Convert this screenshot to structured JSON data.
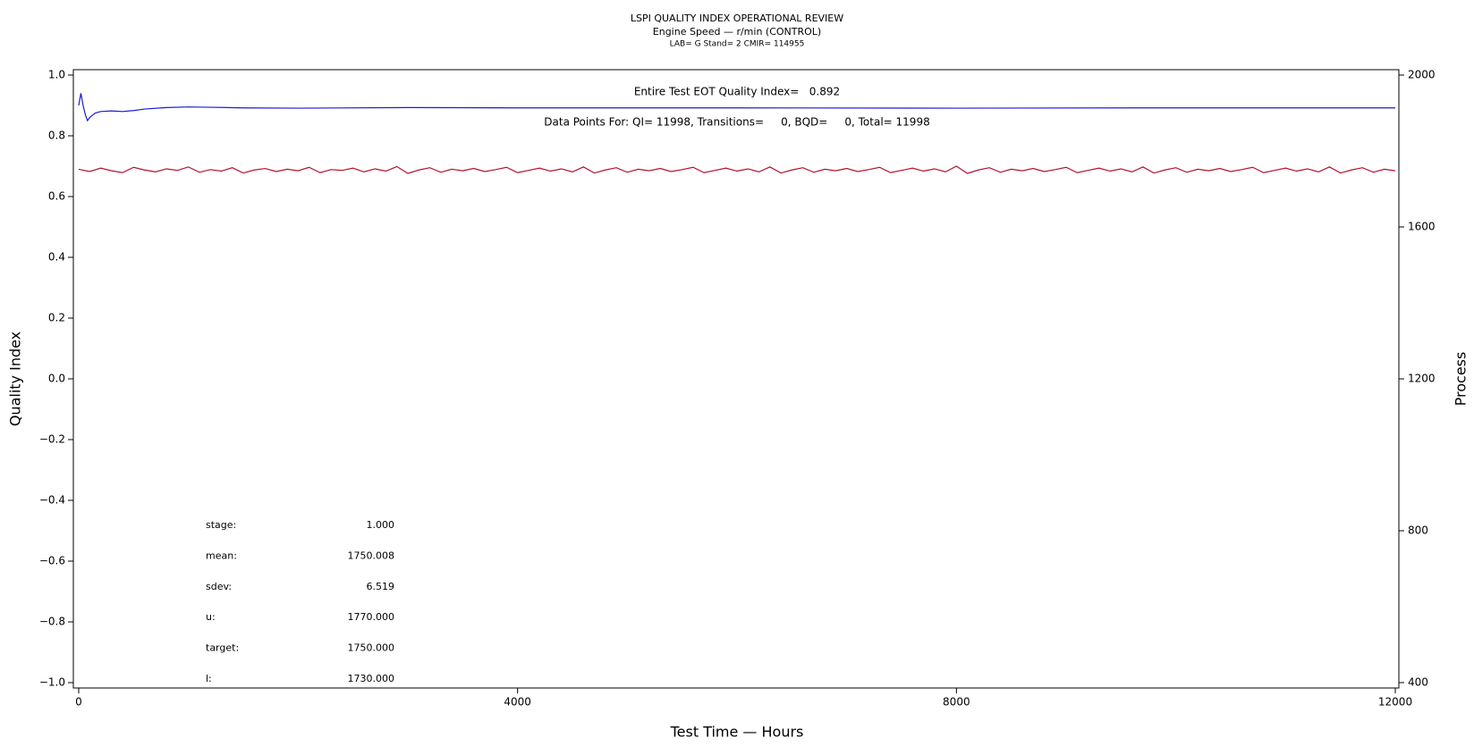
{
  "chart_data": {
    "type": "line",
    "title": "LSPI QUALITY INDEX OPERATIONAL REVIEW",
    "subtitle": "Engine Speed — r/min (CONTROL)",
    "subtitle2": "LAB= G Stand= 2 CMIR= 114955",
    "xlabel": "Test Time — Hours",
    "ylabel": "Quality Index",
    "y2label": "Process",
    "annotations": [
      "Entire Test EOT Quality Index=   0.892",
      "Data Points For: QI= 11998, Transitions=     0, BQD=     0, Total= 11998"
    ],
    "stats": [
      {
        "label": "stage:",
        "value": "1.000"
      },
      {
        "label": "mean:",
        "value": "1750.008"
      },
      {
        "label": "sdev:",
        "value": "6.519"
      },
      {
        "label": "u:",
        "value": "1770.000"
      },
      {
        "label": "target:",
        "value": "1750.000"
      },
      {
        "label": "l:",
        "value": "1730.000"
      }
    ],
    "xlim": [
      0,
      12000
    ],
    "xticks": [
      0,
      4000,
      8000,
      12000
    ],
    "ylim": [
      -1.0,
      1.0
    ],
    "yticks": [
      {
        "value": -1.0,
        "label": "−1.0"
      },
      {
        "value": -0.8,
        "label": "−0.8"
      },
      {
        "value": -0.6,
        "label": "−0.6"
      },
      {
        "value": -0.4,
        "label": "−0.4"
      },
      {
        "value": -0.2,
        "label": "−0.2"
      },
      {
        "value": 0.0,
        "label": "0.0"
      },
      {
        "value": 0.2,
        "label": "0.2"
      },
      {
        "value": 0.4,
        "label": "0.4"
      },
      {
        "value": 0.6,
        "label": "0.6"
      },
      {
        "value": 0.8,
        "label": "0.8"
      },
      {
        "value": 1.0,
        "label": "1.0"
      }
    ],
    "y2lim": [
      400,
      2000
    ],
    "y2ticks": [
      400,
      800,
      1200,
      1600,
      2000
    ],
    "series": [
      {
        "color": "#b4102c",
        "axis": "y2",
        "x": [
          0,
          100,
          200,
          300,
          400,
          500,
          600,
          700,
          800,
          900,
          1000,
          1100,
          1200,
          1300,
          1400,
          1500,
          1600,
          1700,
          1800,
          1900,
          2000,
          2100,
          2200,
          2300,
          2400,
          2500,
          2600,
          2700,
          2800,
          2900,
          3000,
          3100,
          3200,
          3300,
          3400,
          3500,
          3600,
          3700,
          3800,
          3900,
          4000,
          4100,
          4200,
          4300,
          4400,
          4500,
          4600,
          4700,
          4800,
          4900,
          5000,
          5100,
          5200,
          5300,
          5400,
          5500,
          5600,
          5700,
          5800,
          5900,
          6000,
          6100,
          6200,
          6300,
          6400,
          6500,
          6600,
          6700,
          6800,
          6900,
          7000,
          7100,
          7200,
          7300,
          7400,
          7500,
          7600,
          7700,
          7800,
          7900,
          8000,
          8100,
          8200,
          8300,
          8400,
          8500,
          8600,
          8700,
          8800,
          8900,
          9000,
          9100,
          9200,
          9300,
          9400,
          9500,
          9600,
          9700,
          9800,
          9900,
          10000,
          10100,
          10200,
          10300,
          10400,
          10500,
          10600,
          10700,
          10800,
          10900,
          11000,
          11100,
          11200,
          11300,
          11400,
          11500,
          11600,
          11700,
          11800,
          11900,
          12000
        ],
        "values": [
          1752,
          1746,
          1755,
          1748,
          1743,
          1757,
          1750,
          1745,
          1753,
          1749,
          1758,
          1744,
          1751,
          1747,
          1756,
          1742,
          1750,
          1754,
          1746,
          1752,
          1748,
          1757,
          1743,
          1751,
          1749,
          1755,
          1745,
          1753,
          1747,
          1759,
          1741,
          1750,
          1756,
          1744,
          1752,
          1748,
          1754,
          1746,
          1751,
          1757,
          1743,
          1749,
          1755,
          1747,
          1753,
          1745,
          1758,
          1742,
          1750,
          1756,
          1744,
          1752,
          1748,
          1754,
          1746,
          1751,
          1757,
          1743,
          1749,
          1755,
          1747,
          1753,
          1745,
          1758,
          1742,
          1750,
          1756,
          1744,
          1752,
          1748,
          1754,
          1746,
          1751,
          1757,
          1743,
          1749,
          1755,
          1747,
          1753,
          1745,
          1760,
          1741,
          1750,
          1756,
          1744,
          1752,
          1748,
          1754,
          1746,
          1751,
          1757,
          1743,
          1749,
          1755,
          1747,
          1753,
          1745,
          1758,
          1742,
          1750,
          1756,
          1744,
          1752,
          1748,
          1754,
          1746,
          1751,
          1757,
          1743,
          1749,
          1755,
          1747,
          1753,
          1745,
          1758,
          1742,
          1750,
          1756,
          1744,
          1752,
          1748
        ]
      },
      {
        "color": "#1a1ad6",
        "x": [
          0,
          20,
          40,
          60,
          80,
          100,
          150,
          200,
          300,
          400,
          500,
          600,
          800,
          1000,
          1200,
          1500,
          2000,
          3000,
          4000,
          6000,
          8000,
          10000,
          12000
        ],
        "values": [
          0.9,
          0.94,
          0.9,
          0.87,
          0.85,
          0.86,
          0.875,
          0.88,
          0.882,
          0.88,
          0.883,
          0.888,
          0.893,
          0.895,
          0.894,
          0.892,
          0.891,
          0.893,
          0.892,
          0.892,
          0.891,
          0.892,
          0.892
        ]
      }
    ]
  }
}
